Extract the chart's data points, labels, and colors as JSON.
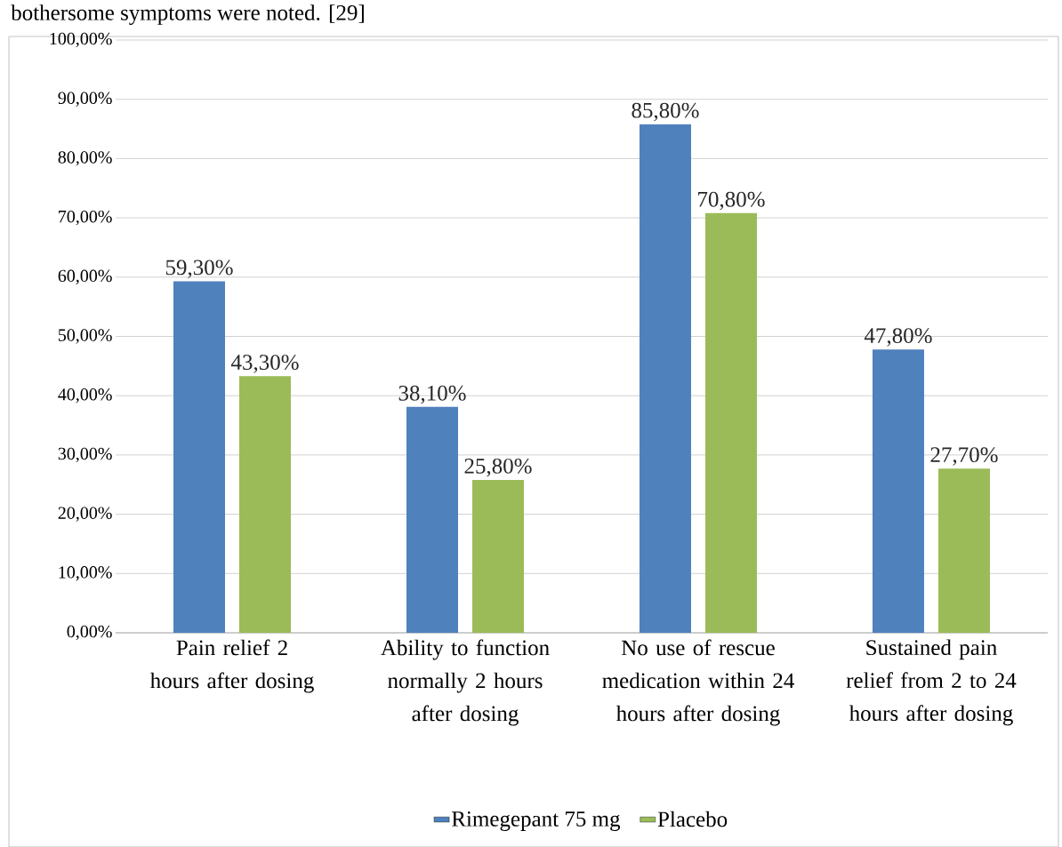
{
  "chart_data": {
    "type": "bar",
    "annotations": [
      "bothersome symptoms were noted. [29]"
    ],
    "categories": [
      "Pain relief 2 hours after dosing",
      "Ability to function normally 2 hours after dosing",
      "No use of rescue medication within 24 hours after dosing",
      "Sustained pain relief from 2 to 24 hours after dosing"
    ],
    "series": [
      {
        "name": "Rimegepant 75 mg",
        "color": "#4f81bd",
        "values": [
          59.3,
          38.1,
          85.8,
          47.8
        ],
        "value_labels": [
          "59,30%",
          "38,10%",
          "85,80%",
          "47,80%"
        ]
      },
      {
        "name": "Placebo",
        "color": "#9bbb59",
        "values": [
          43.3,
          25.8,
          70.8,
          27.7
        ],
        "value_labels": [
          "43,30%",
          "25,80%",
          "70,80%",
          "27,70%"
        ]
      }
    ],
    "ylim": [
      0,
      100
    ],
    "yticks": [
      {
        "value": 0,
        "label": "0,00%"
      },
      {
        "value": 10,
        "label": "10,00%"
      },
      {
        "value": 20,
        "label": "20,00%"
      },
      {
        "value": 30,
        "label": "30,00%"
      },
      {
        "value": 40,
        "label": "40,00%"
      },
      {
        "value": 50,
        "label": "50,00%"
      },
      {
        "value": 60,
        "label": "60,00%"
      },
      {
        "value": 70,
        "label": "70,00%"
      },
      {
        "value": 80,
        "label": "80,00%"
      },
      {
        "value": 90,
        "label": "90,00%"
      },
      {
        "value": 100,
        "label": "100,00%"
      }
    ],
    "grid": "y",
    "legend": "bottom"
  }
}
